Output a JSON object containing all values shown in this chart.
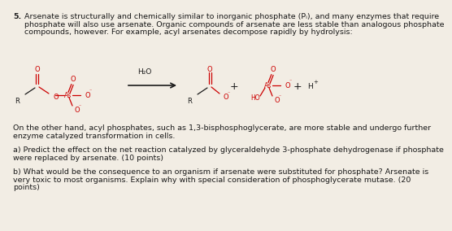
{
  "bg_color": "#f2ede4",
  "dark_color": "#1a1a1a",
  "red_color": "#cc0000",
  "font_size_body": 6.8,
  "font_size_chem": 6.0,
  "title_num": "5.",
  "para1_line1": "Arsenate is structurally and chemically similar to inorganic phosphate (Pᵢ), and many enzymes that require",
  "para1_line2": "phosphate will also use arsenate. Organic compounds of arsenate are less stable than analogous phosphate",
  "para1_line3": "compounds, however. For example, acyl arsenates decompose rapidly by hydrolysis:",
  "para2_line1": "On the other hand, acyl phosphates, such as 1,3-bisphosphoglycerate, are more stable and undergo further",
  "para2_line2": "enzyme catalyzed transformation in cells.",
  "para3a_line1": "a) Predict the effect on the net reaction catalyzed by glyceraldehyde 3-phosphate dehydrogenase if phosphate",
  "para3a_line2": "were replaced by arsenate. (10 points)",
  "para3b_line1": "b) What would be the consequence to an organism if arsenate were substituted for phosphate? Arsenate is",
  "para3b_line2": "very toxic to most organisms. Explain why with special consideration of phosphoglycerate mutase. (20",
  "para3b_line3": "points)"
}
